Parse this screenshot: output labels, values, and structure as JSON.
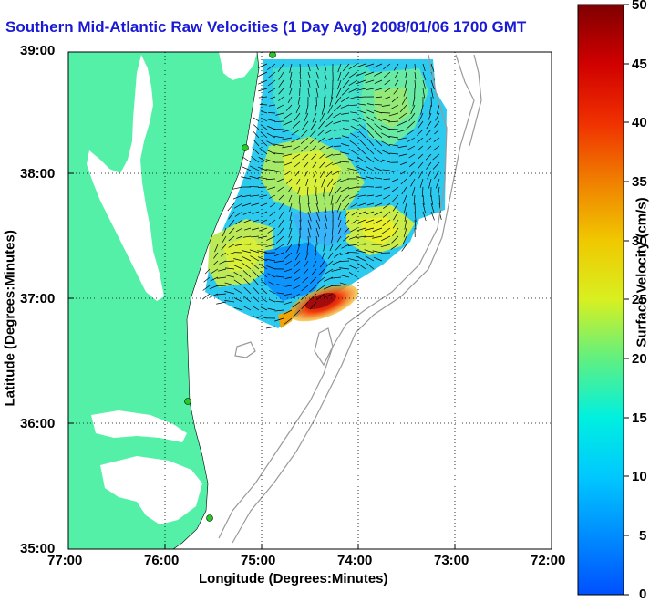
{
  "title": "Southern Mid-Atlantic Raw Velocities (1 Day Avg) 2008/01/06 1700 GMT",
  "x_axis": {
    "label": "Longitude (Degrees:Minutes)",
    "ticks": [
      "77:00",
      "76:00",
      "75:00",
      "74:00",
      "73:00",
      "72:00"
    ]
  },
  "y_axis": {
    "label": "Latitude (Degrees:Minutes)",
    "ticks": [
      "39:00",
      "38:00",
      "37:00",
      "36:00",
      "35:00"
    ]
  },
  "colorbar": {
    "label": "Surface Velocity (cm/s)",
    "min": 0,
    "max": 50,
    "ticks": [
      "50",
      "45",
      "40",
      "35",
      "30",
      "25",
      "20",
      "15",
      "10",
      "5",
      "0"
    ]
  },
  "map": {
    "land_color": "#55f0a8",
    "water_color": "#ffffff",
    "grid": "dotted",
    "stations_color": "#22cc22"
  }
}
